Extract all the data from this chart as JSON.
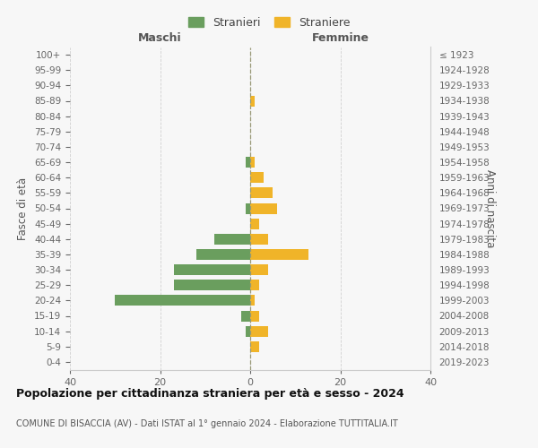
{
  "age_groups": [
    "0-4",
    "5-9",
    "10-14",
    "15-19",
    "20-24",
    "25-29",
    "30-34",
    "35-39",
    "40-44",
    "45-49",
    "50-54",
    "55-59",
    "60-64",
    "65-69",
    "70-74",
    "75-79",
    "80-84",
    "85-89",
    "90-94",
    "95-99",
    "100+"
  ],
  "birth_years": [
    "2019-2023",
    "2014-2018",
    "2009-2013",
    "2004-2008",
    "1999-2003",
    "1994-1998",
    "1989-1993",
    "1984-1988",
    "1979-1983",
    "1974-1978",
    "1969-1973",
    "1964-1968",
    "1959-1963",
    "1954-1958",
    "1949-1953",
    "1944-1948",
    "1939-1943",
    "1934-1938",
    "1929-1933",
    "1924-1928",
    "≤ 1923"
  ],
  "maschi": [
    0,
    0,
    1,
    2,
    30,
    17,
    17,
    12,
    8,
    0,
    1,
    0,
    0,
    1,
    0,
    0,
    0,
    0,
    0,
    0,
    0
  ],
  "femmine": [
    0,
    2,
    4,
    2,
    1,
    2,
    4,
    13,
    4,
    2,
    6,
    5,
    3,
    1,
    0,
    0,
    0,
    1,
    0,
    0,
    0
  ],
  "color_maschi": "#6a9e5e",
  "color_femmine": "#f0b429",
  "title": "Popolazione per cittadinanza straniera per età e sesso - 2024",
  "subtitle": "COMUNE DI BISACCIA (AV) - Dati ISTAT al 1° gennaio 2024 - Elaborazione TUTTITALIA.IT",
  "ylabel_left": "Fasce di età",
  "ylabel_right": "Anni di nascita",
  "label_maschi": "Maschi",
  "label_femmine": "Femmine",
  "legend_maschi": "Stranieri",
  "legend_femmine": "Straniere",
  "xlim": 40,
  "bg_color": "#f7f7f7",
  "grid_color": "#d0d0d0",
  "spine_color": "#cccccc"
}
